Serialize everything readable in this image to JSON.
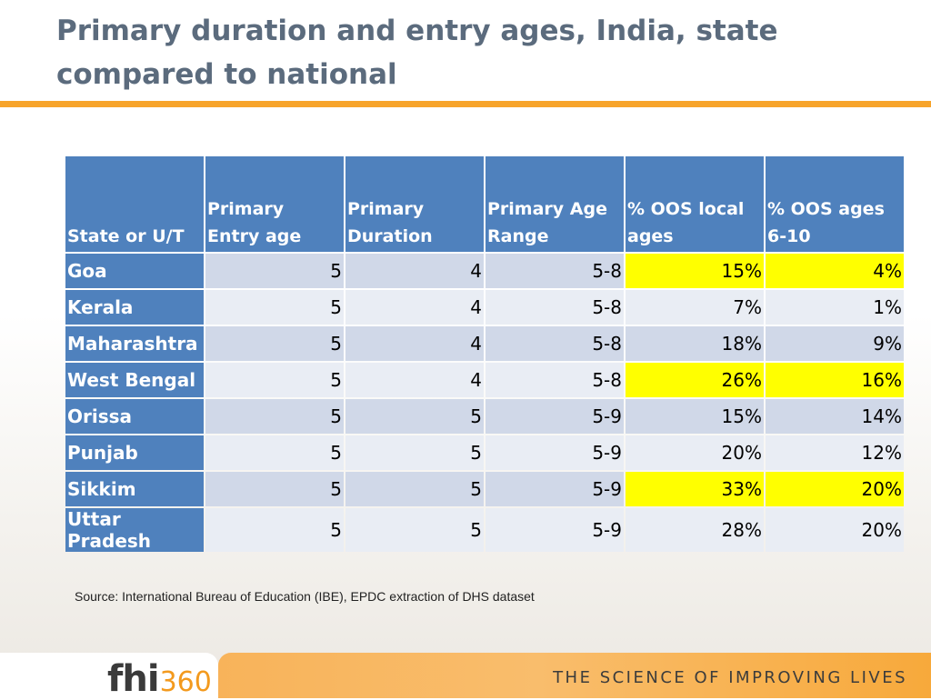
{
  "title": "Primary duration and entry ages, India, state compared to national",
  "table": {
    "headers": [
      "State or U/T",
      "Primary Entry age",
      "Primary Duration",
      "Primary Age Range",
      "% OOS local ages",
      "% OOS ages 6-10"
    ],
    "rows": [
      {
        "state": "Goa",
        "entry": "5",
        "duration": "4",
        "range": "5-8",
        "oos_local": "15%",
        "oos_6_10": "4%",
        "highlight": true
      },
      {
        "state": "Kerala",
        "entry": "5",
        "duration": "4",
        "range": "5-8",
        "oos_local": "7%",
        "oos_6_10": "1%",
        "highlight": false
      },
      {
        "state": "Maharashtra",
        "entry": "5",
        "duration": "4",
        "range": "5-8",
        "oos_local": "18%",
        "oos_6_10": "9%",
        "highlight": false
      },
      {
        "state": "West Bengal",
        "entry": "5",
        "duration": "4",
        "range": "5-8",
        "oos_local": "26%",
        "oos_6_10": "16%",
        "highlight": true
      },
      {
        "state": "Orissa",
        "entry": "5",
        "duration": "5",
        "range": "5-9",
        "oos_local": "15%",
        "oos_6_10": "14%",
        "highlight": false
      },
      {
        "state": "Punjab",
        "entry": "5",
        "duration": "5",
        "range": "5-9",
        "oos_local": "20%",
        "oos_6_10": "12%",
        "highlight": false
      },
      {
        "state": "Sikkim",
        "entry": "5",
        "duration": "5",
        "range": "5-9",
        "oos_local": "33%",
        "oos_6_10": "20%",
        "highlight": true
      },
      {
        "state": "Uttar Pradesh",
        "entry": "5",
        "duration": "5",
        "range": "5-9",
        "oos_local": "28%",
        "oos_6_10": "20%",
        "highlight": false
      }
    ]
  },
  "source": "Source: International Bureau of Education (IBE), EPDC extraction of DHS dataset",
  "footer": {
    "logo_main": "fhi",
    "logo_number": "360",
    "tagline": "THE SCIENCE OF IMPROVING LIVES"
  },
  "colors": {
    "accent_orange": "#f7a42b",
    "header_blue": "#4f81bd",
    "highlight_yellow": "#ffff00"
  }
}
